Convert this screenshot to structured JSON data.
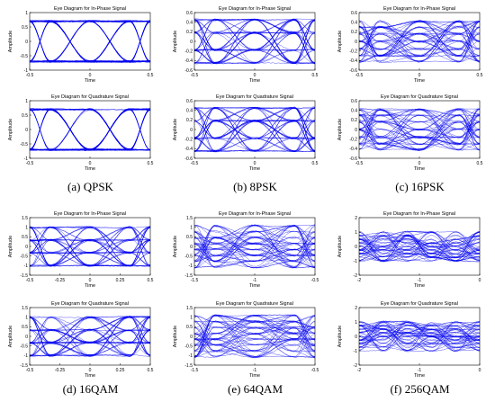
{
  "captions": [
    "(a) QPSK",
    "(b) 8PSK",
    "(c) 16PSK",
    "(d) 16QAM",
    "(e) 64QAM",
    "(f) 256QAM"
  ],
  "colors": {
    "trace": "#0000ee",
    "axis": "#000000",
    "background": "#ffffff"
  },
  "chart_data": [
    {
      "type": "line",
      "modulation": "QPSK",
      "caption": "(a) QPSK",
      "panels": [
        {
          "title": "Eye Diagram for In-Phase Signal",
          "xlabel": "Time",
          "ylabel": "Amplitude",
          "xlim": [
            -0.5,
            0.5
          ],
          "ylim": [
            -1,
            1
          ],
          "xticks": [
            "-0.5",
            "0",
            "0.5"
          ],
          "yticks": [
            "-1",
            "-0.5",
            "0",
            "0.5",
            "1"
          ],
          "levels": [
            -0.7,
            0.7
          ],
          "crossings": [
            -0.33,
            0,
            0.33
          ]
        },
        {
          "title": "Eye Diagram for Quadrature Signal",
          "xlabel": "Time",
          "ylabel": "Amplitude",
          "xlim": [
            -0.5,
            0.5
          ],
          "ylim": [
            -1,
            1
          ],
          "xticks": [
            "-0.5",
            "0",
            "0.5"
          ],
          "yticks": [
            "-1",
            "-0.5",
            "0",
            "0.5",
            "1"
          ],
          "levels": [
            -0.7,
            0.7
          ],
          "crossings": [
            -0.33,
            0,
            0.33
          ]
        }
      ]
    },
    {
      "type": "line",
      "modulation": "8PSK",
      "caption": "(b) 8PSK",
      "panels": [
        {
          "title": "Eye Diagram for In-Phase Signal",
          "xlabel": "Time",
          "ylabel": "Amplitude",
          "xlim": [
            -0.5,
            0.5
          ],
          "ylim": [
            -0.6,
            0.6
          ],
          "xticks": [
            "-0.5",
            "0",
            "0.5"
          ],
          "yticks": [
            "-0.6",
            "-0.4",
            "-0.2",
            "0",
            "0.2",
            "0.4",
            "0.6"
          ],
          "levels": [
            -0.45,
            -0.18,
            0.18,
            0.45
          ],
          "crossings": [
            -0.33,
            0,
            0.33
          ]
        },
        {
          "title": "Eye Diagram for Quadrature Signal",
          "xlabel": "Time",
          "ylabel": "Amplitude",
          "xlim": [
            -0.5,
            0.5
          ],
          "ylim": [
            -0.6,
            0.6
          ],
          "xticks": [
            "-0.5",
            "0",
            "0.5"
          ],
          "yticks": [
            "-0.6",
            "-0.4",
            "-0.2",
            "0",
            "0.2",
            "0.4",
            "0.6"
          ],
          "levels": [
            -0.45,
            -0.18,
            0.18,
            0.45
          ],
          "crossings": [
            -0.33,
            0,
            0.33
          ]
        }
      ]
    },
    {
      "type": "line",
      "modulation": "16PSK",
      "caption": "(c) 16PSK",
      "panels": [
        {
          "title": "Eye Diagram for In-Phase Signal",
          "xlabel": "Time",
          "ylabel": "Amplitude",
          "xlim": [
            -0.5,
            0.5
          ],
          "ylim": [
            -0.6,
            0.6
          ],
          "xticks": [
            "-0.5",
            "0",
            "0.5"
          ],
          "yticks": [
            "-0.6",
            "-0.4",
            "-0.2",
            "0",
            "0.2",
            "0.4",
            "0.6"
          ],
          "levels": [
            -0.42,
            -0.3,
            -0.16,
            0,
            0.16,
            0.3,
            0.42
          ],
          "crossings": [
            -0.33,
            0,
            0.33
          ]
        },
        {
          "title": "Eye Diagram for Quadrature Signal",
          "xlabel": "Time",
          "ylabel": "Amplitude",
          "xlim": [
            -0.5,
            0.5
          ],
          "ylim": [
            -0.6,
            0.6
          ],
          "xticks": [
            "-0.5",
            "0",
            "0.5"
          ],
          "yticks": [
            "-0.6",
            "-0.4",
            "-0.2",
            "0",
            "0.2",
            "0.4",
            "0.6"
          ],
          "levels": [
            -0.42,
            -0.3,
            -0.16,
            0,
            0.16,
            0.3,
            0.42
          ],
          "crossings": [
            -0.33,
            0,
            0.33
          ]
        }
      ]
    },
    {
      "type": "line",
      "modulation": "16QAM",
      "caption": "(d) 16QAM",
      "panels": [
        {
          "title": "Eye Diagram for In-Phase Signal",
          "xlabel": "Time",
          "ylabel": "Amplitude",
          "xlim": [
            -0.5,
            0.5
          ],
          "ylim": [
            -1.5,
            1.5
          ],
          "xticks": [
            "-0.5",
            "-0.25",
            "0",
            "0.25",
            "0.5"
          ],
          "yticks": [
            "-1.5",
            "-1",
            "-0.5",
            "0",
            "0.5",
            "1",
            "1.5"
          ],
          "levels": [
            -1,
            -0.33,
            0.33,
            1
          ],
          "crossings": [
            -0.33,
            0,
            0.33
          ]
        },
        {
          "title": "Eye Diagram for Quadrature Signal",
          "xlabel": "Time",
          "ylabel": "Amplitude",
          "xlim": [
            -0.5,
            0.5
          ],
          "ylim": [
            -1.5,
            1.5
          ],
          "xticks": [
            "-0.5",
            "-0.25",
            "0",
            "0.25",
            "0.5"
          ],
          "yticks": [
            "-1.5",
            "-1",
            "-0.5",
            "0",
            "0.5",
            "1",
            "1.5"
          ],
          "levels": [
            -1,
            -0.33,
            0.33,
            1
          ],
          "crossings": [
            -0.33,
            0,
            0.33
          ]
        }
      ]
    },
    {
      "type": "line",
      "modulation": "64QAM",
      "caption": "(e) 64QAM",
      "panels": [
        {
          "title": "Eye Diagram for In-Phase Signal",
          "xlabel": "Time",
          "ylabel": "Amplitude",
          "xlim": [
            -1.5,
            -0.5
          ],
          "ylim": [
            -1.5,
            1.5
          ],
          "xticks": [
            "-1.5",
            "-1",
            "-0.5"
          ],
          "yticks": [
            "-1.5",
            "-1",
            "-0.5",
            "0",
            "0.5",
            "1",
            "1.5"
          ],
          "levels": [
            -1.08,
            -0.77,
            -0.46,
            -0.15,
            0.15,
            0.46,
            0.77,
            1.08
          ],
          "crossings": [
            -1.33,
            -1,
            -0.67
          ]
        },
        {
          "title": "Eye Diagram for Quadrature Signal",
          "xlabel": "Time",
          "ylabel": "Amplitude",
          "xlim": [
            -1.5,
            -0.5
          ],
          "ylim": [
            -1.5,
            1.5
          ],
          "xticks": [
            "-1.5",
            "-1",
            "-0.5"
          ],
          "yticks": [
            "-1.5",
            "-1",
            "-0.5",
            "0",
            "0.5",
            "1",
            "1.5"
          ],
          "levels": [
            -1.08,
            -0.77,
            -0.46,
            -0.15,
            0.15,
            0.46,
            0.77,
            1.08
          ],
          "crossings": [
            -1.33,
            -1,
            -0.67
          ]
        }
      ]
    },
    {
      "type": "line",
      "modulation": "256QAM",
      "caption": "(f) 256QAM",
      "panels": [
        {
          "title": "Eye Diagram for In-Phase Signal",
          "xlabel": "Time",
          "ylabel": "Amplitude",
          "xlim": [
            -2,
            0
          ],
          "ylim": [
            -2,
            2
          ],
          "xticks": [
            "-2",
            "-1",
            "0"
          ],
          "yticks": [
            "-2",
            "-1",
            "0",
            "1",
            "2"
          ],
          "levels": [
            -1,
            -0.75,
            -0.5,
            -0.25,
            0,
            0.25,
            0.5,
            0.75,
            1
          ],
          "crossings": [
            -1.6,
            -1.2,
            -0.8,
            -0.4
          ]
        },
        {
          "title": "Eye Diagram for Quadrature Signal",
          "xlabel": "Time",
          "ylabel": "Amplitude",
          "xlim": [
            -2,
            0
          ],
          "ylim": [
            -2,
            2
          ],
          "xticks": [
            "-2",
            "-1",
            "0"
          ],
          "yticks": [
            "-2",
            "-1",
            "0",
            "1",
            "2"
          ],
          "levels": [
            -1,
            -0.75,
            -0.5,
            -0.25,
            0,
            0.25,
            0.5,
            0.75,
            1
          ],
          "crossings": [
            -1.6,
            -1.2,
            -0.8,
            -0.4
          ]
        }
      ]
    }
  ]
}
